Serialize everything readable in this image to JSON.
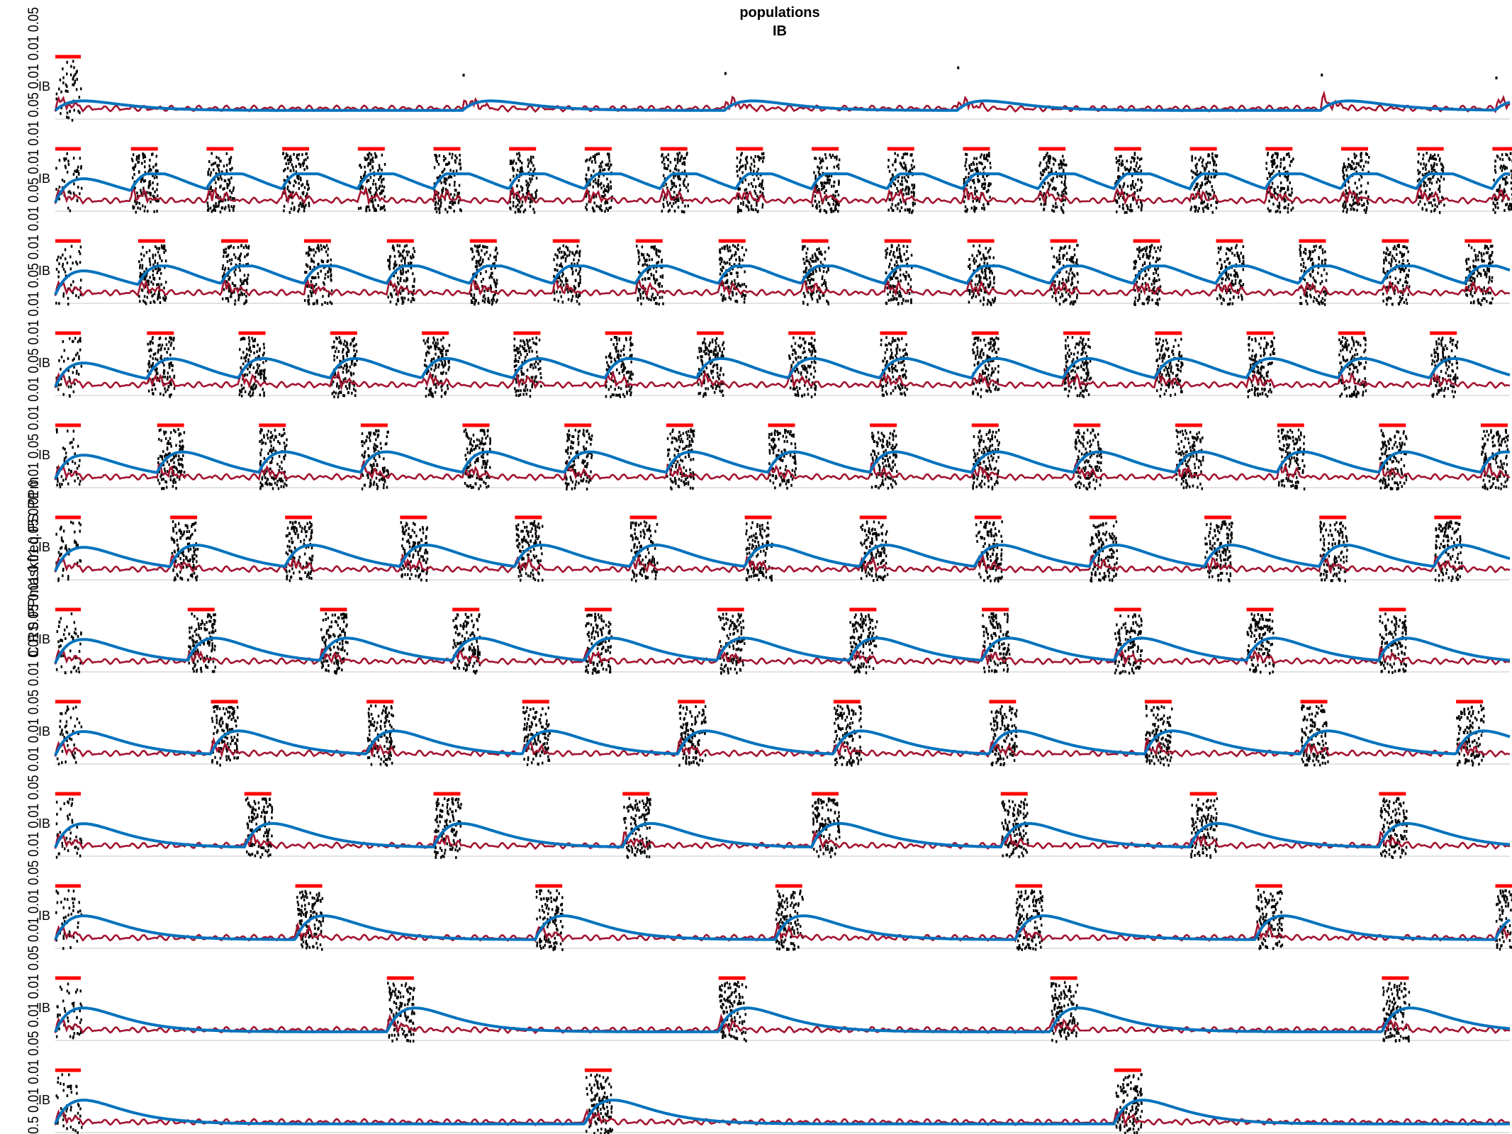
{
  "chart_data": {
    "type": "line",
    "title": "populations",
    "subtitle": "IB",
    "ylabel": "C RS PPmaskfreq FS PPm",
    "left_tick_strip": "0.5 0.01 0.01 0.05 0.01 0.01 0.05 0.01 0.01 0.05 0.01 0.01 0.05 0.01 0.01 0.05 0.01 0.01 0.05 0.01 0.01 0.05 0.01 0.01 0.05 0.01 0.01 0.05 0.01 0.01 0.05 0.01 0.01 0.05 0.01 0.01 0.05 0.01 0.01 0.05",
    "panel_label": "IB",
    "series": [
      {
        "name": "",
        "color": "#a2142f"
      },
      {
        "name": "",
        "color": "#0072bd"
      }
    ],
    "marker_color": "#ff0000",
    "raster_color": "#000000",
    "grid": false,
    "panels": [
      {
        "row": 1,
        "burst_onsets": [
          0.0,
          0.28,
          0.46,
          0.62,
          0.87,
          0.99
        ],
        "mode": "sparse"
      },
      {
        "row": 2,
        "burst_onsets": [
          0.0,
          0.052,
          0.104,
          0.156,
          0.208,
          0.26,
          0.312,
          0.364,
          0.416,
          0.468,
          0.52,
          0.572,
          0.624,
          0.676,
          0.728,
          0.78,
          0.832,
          0.884,
          0.936,
          0.988
        ],
        "mode": "burst"
      },
      {
        "row": 3,
        "burst_onsets": [
          0.0,
          0.057,
          0.114,
          0.171,
          0.228,
          0.285,
          0.342,
          0.399,
          0.456,
          0.513,
          0.57,
          0.627,
          0.684,
          0.741,
          0.798,
          0.855,
          0.912,
          0.969
        ],
        "mode": "burst"
      },
      {
        "row": 4,
        "burst_onsets": [
          0.0,
          0.063,
          0.126,
          0.189,
          0.252,
          0.315,
          0.378,
          0.441,
          0.504,
          0.567,
          0.63,
          0.693,
          0.756,
          0.819,
          0.882,
          0.945
        ],
        "mode": "burst"
      },
      {
        "row": 5,
        "burst_onsets": [
          0.0,
          0.07,
          0.14,
          0.21,
          0.28,
          0.35,
          0.42,
          0.49,
          0.56,
          0.63,
          0.7,
          0.77,
          0.84,
          0.91,
          0.98
        ],
        "mode": "burst"
      },
      {
        "row": 6,
        "burst_onsets": [
          0.0,
          0.079,
          0.158,
          0.237,
          0.316,
          0.395,
          0.474,
          0.553,
          0.632,
          0.711,
          0.79,
          0.869,
          0.948
        ],
        "mode": "burst"
      },
      {
        "row": 7,
        "burst_onsets": [
          0.0,
          0.091,
          0.182,
          0.273,
          0.364,
          0.455,
          0.546,
          0.637,
          0.728,
          0.819,
          0.91
        ],
        "mode": "burst"
      },
      {
        "row": 8,
        "burst_onsets": [
          0.0,
          0.107,
          0.214,
          0.321,
          0.428,
          0.535,
          0.642,
          0.749,
          0.856,
          0.963
        ],
        "mode": "burst"
      },
      {
        "row": 9,
        "burst_onsets": [
          0.0,
          0.13,
          0.26,
          0.39,
          0.52,
          0.65,
          0.78,
          0.91
        ],
        "mode": "burst"
      },
      {
        "row": 10,
        "burst_onsets": [
          0.0,
          0.165,
          0.33,
          0.495,
          0.66,
          0.825,
          0.99
        ],
        "mode": "burst"
      },
      {
        "row": 11,
        "burst_onsets": [
          0.0,
          0.228,
          0.456,
          0.684,
          0.912
        ],
        "mode": "burst"
      },
      {
        "row": 12,
        "burst_onsets": [
          0.0,
          0.364,
          0.728
        ],
        "mode": "burst"
      }
    ]
  }
}
